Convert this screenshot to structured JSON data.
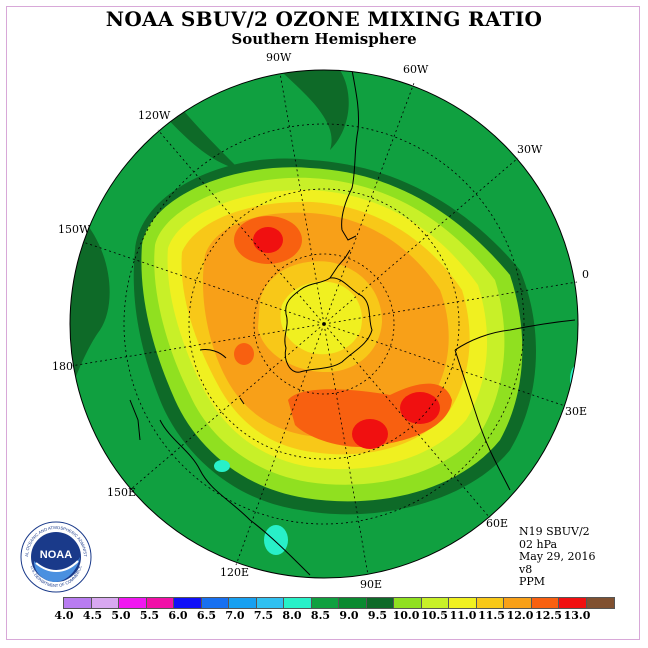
{
  "title": "NOAA SBUV/2 OZONE MIXING RATIO",
  "subtitle": "Southern Hemisphere",
  "longitudes": [
    "90W",
    "60W",
    "30W",
    "0",
    "30E",
    "60E",
    "90E",
    "120E",
    "150E",
    "180",
    "150W",
    "120W"
  ],
  "info": {
    "instrument": "N19 SBUV/2",
    "pressure": "02 hPa",
    "date": "May 29, 2016",
    "version": "v8",
    "units": "PPM"
  },
  "colorbar": {
    "ticks": [
      "4.0",
      "4.5",
      "5.0",
      "5.5",
      "6.0",
      "6.5",
      "7.0",
      "7.5",
      "8.0",
      "8.5",
      "9.0",
      "9.5",
      "10.0",
      "10.5",
      "11.0",
      "11.5",
      "12.0",
      "12.5",
      "13.0"
    ],
    "colors": [
      "#b87cf0",
      "#d8a8f0",
      "#f018f0",
      "#f010a8",
      "#1010f8",
      "#1870f0",
      "#18a0f0",
      "#30c0f0",
      "#28f0c8",
      "#10a040",
      "#0a8a30",
      "#0e6a28",
      "#90e020",
      "#c8f028",
      "#f0f020",
      "#f8c818",
      "#f8a018",
      "#f86010",
      "#f01010",
      "#805030"
    ]
  },
  "logo": {
    "text": "NOAA",
    "ring_text": "NATIONAL OCEANIC AND ATMOSPHERIC ADMINISTRATION",
    "ring_bottom": "U.S. DEPARTMENT OF COMMERCE"
  }
}
